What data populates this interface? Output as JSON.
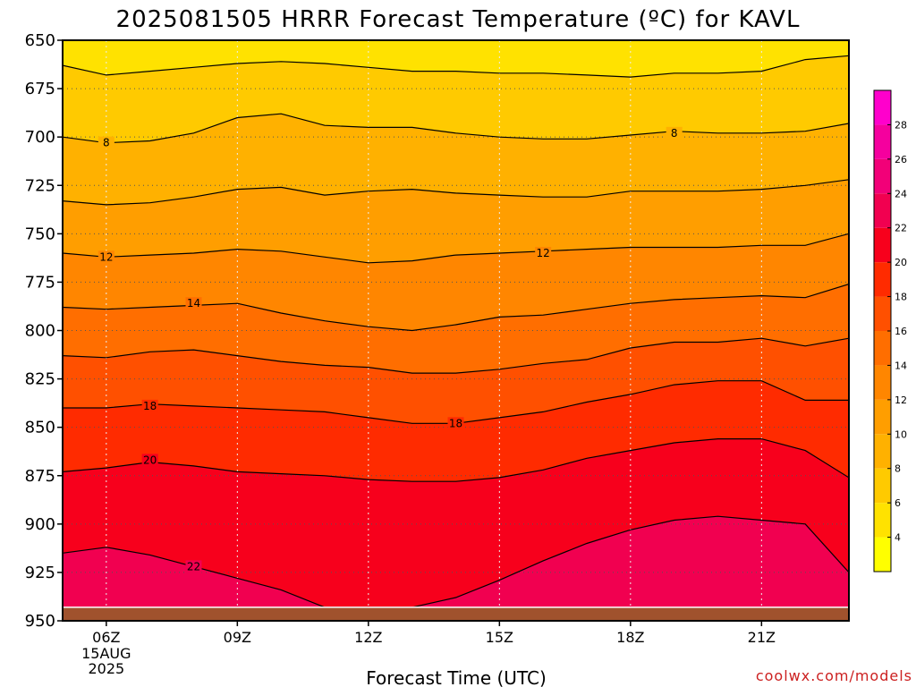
{
  "chart_data": {
    "type": "heatmap",
    "title": "2025081505 HRRR Forecast Temperature (ºC) for KAVL",
    "xlabel": "Forecast Time (UTC)",
    "ylabel": "",
    "credit": "coolwx.com/models",
    "x_ticks": [
      {
        "hour": 6,
        "label": "06Z",
        "sub": [
          "15AUG",
          "2025"
        ]
      },
      {
        "hour": 9,
        "label": "09Z"
      },
      {
        "hour": 12,
        "label": "12Z"
      },
      {
        "hour": 15,
        "label": "15Z"
      },
      {
        "hour": 18,
        "label": "18Z"
      },
      {
        "hour": 21,
        "label": "21Z"
      }
    ],
    "xlim": [
      5,
      23
    ],
    "y_ticks": [
      650,
      675,
      700,
      725,
      750,
      775,
      800,
      825,
      850,
      875,
      900,
      925,
      950
    ],
    "ylim": [
      950,
      650
    ],
    "ground_pressure": 943,
    "grid": true,
    "colorbar": {
      "ticks": [
        4,
        6,
        8,
        10,
        12,
        14,
        16,
        18,
        20,
        22,
        24,
        26,
        28
      ],
      "range": [
        2,
        30
      ],
      "colors": [
        "#ffff00",
        "#ffe200",
        "#ffca00",
        "#ffb100",
        "#ff9e00",
        "#ff8600",
        "#ff6e00",
        "#ff5000",
        "#ff2b00",
        "#f7001c",
        "#f10050",
        "#f20078",
        "#f5009e",
        "#ff00cc"
      ]
    },
    "hours": [
      5,
      6,
      7,
      8,
      9,
      10,
      11,
      12,
      13,
      14,
      15,
      16,
      17,
      18,
      19,
      20,
      21,
      22,
      23
    ],
    "contours": [
      {
        "temp": 6,
        "p": [
          663,
          668,
          666,
          664,
          662,
          661,
          662,
          664,
          666,
          666,
          667,
          667,
          668,
          669,
          667,
          667,
          666,
          660,
          658
        ]
      },
      {
        "temp": 8,
        "p": [
          700,
          703,
          702,
          698,
          690,
          688,
          694,
          695,
          695,
          698,
          700,
          701,
          701,
          699,
          697,
          698,
          698,
          697,
          693
        ]
      },
      {
        "temp": 10,
        "p": [
          733,
          735,
          734,
          731,
          727,
          726,
          730,
          728,
          727,
          729,
          730,
          731,
          731,
          728,
          728,
          728,
          727,
          725,
          722
        ]
      },
      {
        "temp": 12,
        "p": [
          760,
          762,
          761,
          760,
          758,
          759,
          762,
          765,
          764,
          761,
          760,
          759,
          758,
          757,
          757,
          757,
          756,
          756,
          750
        ]
      },
      {
        "temp": 14,
        "p": [
          788,
          789,
          788,
          787,
          786,
          791,
          795,
          798,
          800,
          797,
          793,
          792,
          789,
          786,
          784,
          783,
          782,
          783,
          776
        ]
      },
      {
        "temp": 16,
        "p": [
          813,
          814,
          811,
          810,
          813,
          816,
          818,
          819,
          822,
          822,
          820,
          817,
          815,
          809,
          806,
          806,
          804,
          808,
          804
        ]
      },
      {
        "temp": 18,
        "p": [
          840,
          840,
          838,
          839,
          840,
          841,
          842,
          845,
          848,
          848,
          845,
          842,
          837,
          833,
          828,
          826,
          826,
          836,
          836
        ]
      },
      {
        "temp": 20,
        "p": [
          873,
          871,
          868,
          870,
          873,
          874,
          875,
          877,
          878,
          878,
          876,
          872,
          866,
          862,
          858,
          856,
          856,
          862,
          876
        ]
      },
      {
        "temp": 22,
        "p": [
          915,
          912,
          916,
          922,
          928,
          934,
          943,
          943,
          943,
          938,
          929,
          919,
          910,
          903,
          898,
          896,
          898,
          900,
          925
        ]
      }
    ],
    "contour_labels": [
      {
        "text": "8",
        "hour": 6.0,
        "p": 703
      },
      {
        "text": "8",
        "hour": 19.0,
        "p": 698
      },
      {
        "text": "12",
        "hour": 6.0,
        "p": 762
      },
      {
        "text": "12",
        "hour": 16.0,
        "p": 760
      },
      {
        "text": "14",
        "hour": 8.0,
        "p": 786
      },
      {
        "text": "18",
        "hour": 7.0,
        "p": 839
      },
      {
        "text": "18",
        "hour": 14.0,
        "p": 848
      },
      {
        "text": "20",
        "hour": 7.0,
        "p": 867
      },
      {
        "text": "22",
        "hour": 8.0,
        "p": 922
      }
    ]
  }
}
